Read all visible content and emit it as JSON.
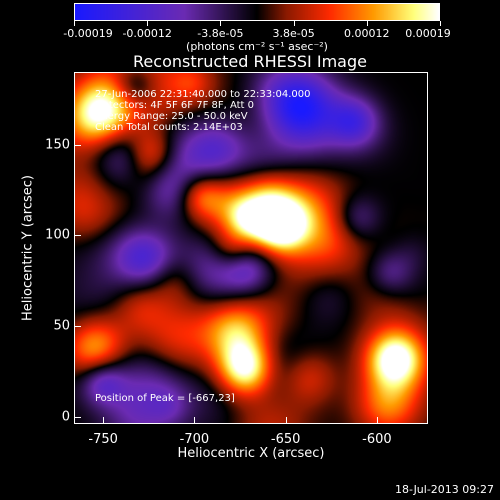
{
  "colorbar": {
    "ticks": [
      "-0.00019",
      "-0.00012",
      "-3.8e-05",
      "3.8e-05",
      "0.00012",
      "0.00019"
    ],
    "units": "(photons cm⁻² s⁻¹ asec⁻²)",
    "range": [
      -0.00019,
      0.00019
    ],
    "colors": [
      "#1a1aff",
      "#6b2bb3",
      "#000000",
      "#8a1a00",
      "#ff2a00",
      "#ff9a00",
      "#ffff7a",
      "#ffffff"
    ]
  },
  "title": "Reconstructed RHESSI Image",
  "info": {
    "line1": "27-Jun-2006 22:31:40.000 to 22:33:04.000",
    "line2": "Detectors: 4F 5F 6F 7F 8F, Att 0",
    "line3": "Energy Range: 25.0 - 50.0 keV",
    "line4": "Clean    Total counts: 2.14E+03"
  },
  "peak": "Position of Peak = [-667,23]",
  "axes": {
    "xlabel": "Heliocentric X (arcsec)",
    "ylabel": "Heliocentric Y (arcsec)",
    "xticks": [
      "-750",
      "-700",
      "-650",
      "-600"
    ],
    "xtick_values": [
      -750,
      -700,
      -650,
      -600
    ],
    "yticks": [
      "0",
      "50",
      "100",
      "150"
    ],
    "ytick_values": [
      0,
      50,
      100,
      150
    ],
    "xlim": [
      -766,
      -572
    ],
    "ylim": [
      -4,
      190
    ]
  },
  "stamp": "18-Jul-2013 09:27"
}
